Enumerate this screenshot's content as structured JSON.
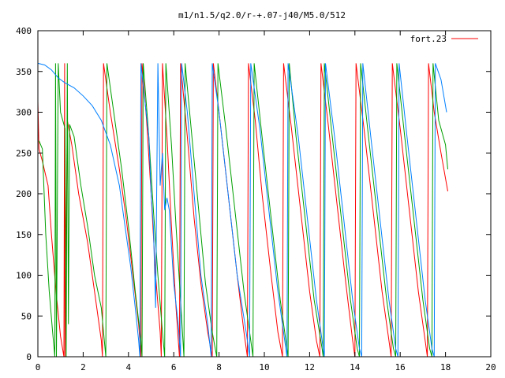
{
  "chart_data": {
    "type": "line",
    "title": "m1/n1.5/q2.0/r-+.07-j40/M5.0/512",
    "xlabel": "",
    "ylabel": "",
    "xlim": [
      0,
      20
    ],
    "ylim": [
      0,
      400
    ],
    "xticks": [
      "0",
      "2",
      "4",
      "6",
      "8",
      "10",
      "12",
      "14",
      "16",
      "18",
      "20"
    ],
    "yticks": [
      "0",
      "50",
      "100",
      "150",
      "200",
      "250",
      "300",
      "350",
      "400"
    ],
    "grid": false,
    "legend_position": "top-right",
    "colors": {
      "red": "#ff0000",
      "green": "#00a000",
      "blue": "#0080ff",
      "purple": "#8000a0"
    },
    "series": [
      {
        "name": "fort.23",
        "color": "#ff0000",
        "points": [
          [
            0,
            313
          ],
          [
            0.05,
            255
          ],
          [
            0.2,
            240
          ],
          [
            0.45,
            210
          ],
          [
            0.6,
            150
          ],
          [
            0.8,
            80
          ],
          [
            1.0,
            25
          ],
          [
            1.15,
            0
          ],
          [
            1.18,
            360
          ],
          [
            1.2,
            0
          ],
          [
            1.3,
            290
          ],
          [
            1.5,
            260
          ],
          [
            1.8,
            200
          ],
          [
            2.2,
            140
          ],
          [
            2.5,
            80
          ],
          [
            2.8,
            20
          ],
          [
            2.85,
            0
          ],
          [
            2.9,
            360
          ],
          [
            3.2,
            300
          ],
          [
            3.6,
            230
          ],
          [
            3.9,
            170
          ],
          [
            4.2,
            100
          ],
          [
            4.45,
            40
          ],
          [
            4.55,
            0
          ],
          [
            4.6,
            360
          ],
          [
            4.8,
            290
          ],
          [
            5.0,
            200
          ],
          [
            5.2,
            100
          ],
          [
            5.4,
            30
          ],
          [
            5.45,
            0
          ],
          [
            5.5,
            360
          ],
          [
            5.7,
            270
          ],
          [
            5.9,
            160
          ],
          [
            6.1,
            60
          ],
          [
            6.25,
            0
          ],
          [
            6.3,
            360
          ],
          [
            6.6,
            270
          ],
          [
            6.9,
            170
          ],
          [
            7.2,
            90
          ],
          [
            7.5,
            30
          ],
          [
            7.7,
            0
          ],
          [
            7.75,
            360
          ],
          [
            8.0,
            300
          ],
          [
            8.4,
            200
          ],
          [
            8.8,
            100
          ],
          [
            9.1,
            30
          ],
          [
            9.25,
            0
          ],
          [
            9.3,
            360
          ],
          [
            9.6,
            290
          ],
          [
            9.9,
            200
          ],
          [
            10.3,
            100
          ],
          [
            10.6,
            30
          ],
          [
            10.8,
            0
          ],
          [
            10.85,
            360
          ],
          [
            11.2,
            280
          ],
          [
            11.6,
            180
          ],
          [
            12.0,
            80
          ],
          [
            12.3,
            20
          ],
          [
            12.45,
            0
          ],
          [
            12.5,
            360
          ],
          [
            12.8,
            290
          ],
          [
            13.2,
            190
          ],
          [
            13.6,
            90
          ],
          [
            13.9,
            20
          ],
          [
            14.0,
            0
          ],
          [
            14.05,
            360
          ],
          [
            14.4,
            280
          ],
          [
            14.8,
            180
          ],
          [
            15.2,
            80
          ],
          [
            15.5,
            20
          ],
          [
            15.6,
            0
          ],
          [
            15.65,
            360
          ],
          [
            16.0,
            280
          ],
          [
            16.4,
            180
          ],
          [
            16.8,
            80
          ],
          [
            17.1,
            20
          ],
          [
            17.2,
            0
          ],
          [
            17.25,
            360
          ],
          [
            17.5,
            300
          ],
          [
            17.8,
            250
          ],
          [
            18.1,
            203
          ]
        ]
      },
      {
        "name": "",
        "color": "#00a000",
        "points": [
          [
            0.05,
            265
          ],
          [
            0.2,
            255
          ],
          [
            0.35,
            150
          ],
          [
            0.5,
            80
          ],
          [
            0.65,
            30
          ],
          [
            0.75,
            0
          ],
          [
            0.78,
            360
          ],
          [
            0.82,
            0
          ],
          [
            0.9,
            360
          ],
          [
            1.0,
            300
          ],
          [
            1.2,
            280
          ],
          [
            1.25,
            0
          ],
          [
            1.3,
            360
          ],
          [
            1.35,
            40
          ],
          [
            1.4,
            285
          ],
          [
            1.6,
            270
          ],
          [
            1.9,
            210
          ],
          [
            2.2,
            160
          ],
          [
            2.5,
            100
          ],
          [
            2.8,
            60
          ],
          [
            3.0,
            0
          ],
          [
            3.05,
            360
          ],
          [
            3.3,
            310
          ],
          [
            3.7,
            230
          ],
          [
            4.0,
            160
          ],
          [
            4.3,
            80
          ],
          [
            4.55,
            20
          ],
          [
            4.6,
            0
          ],
          [
            4.65,
            360
          ],
          [
            4.9,
            270
          ],
          [
            5.1,
            180
          ],
          [
            5.3,
            100
          ],
          [
            5.5,
            30
          ],
          [
            5.6,
            0
          ],
          [
            5.65,
            360
          ],
          [
            5.9,
            260
          ],
          [
            6.1,
            160
          ],
          [
            6.3,
            70
          ],
          [
            6.45,
            0
          ],
          [
            6.5,
            360
          ],
          [
            6.8,
            270
          ],
          [
            7.1,
            180
          ],
          [
            7.4,
            90
          ],
          [
            7.7,
            30
          ],
          [
            7.9,
            0
          ],
          [
            7.95,
            360
          ],
          [
            8.3,
            280
          ],
          [
            8.7,
            180
          ],
          [
            9.1,
            80
          ],
          [
            9.4,
            20
          ],
          [
            9.5,
            0
          ],
          [
            9.55,
            360
          ],
          [
            9.9,
            270
          ],
          [
            10.3,
            170
          ],
          [
            10.7,
            70
          ],
          [
            11.0,
            10
          ],
          [
            11.05,
            0
          ],
          [
            11.1,
            360
          ],
          [
            11.4,
            270
          ],
          [
            11.8,
            170
          ],
          [
            12.2,
            70
          ],
          [
            12.55,
            10
          ],
          [
            12.6,
            0
          ],
          [
            12.65,
            360
          ],
          [
            13.0,
            270
          ],
          [
            13.4,
            170
          ],
          [
            13.8,
            70
          ],
          [
            14.1,
            10
          ],
          [
            14.2,
            0
          ],
          [
            14.25,
            360
          ],
          [
            14.6,
            270
          ],
          [
            15.0,
            170
          ],
          [
            15.4,
            70
          ],
          [
            15.7,
            10
          ],
          [
            15.8,
            0
          ],
          [
            15.85,
            360
          ],
          [
            16.2,
            270
          ],
          [
            16.6,
            170
          ],
          [
            17.0,
            70
          ],
          [
            17.3,
            10
          ],
          [
            17.4,
            0
          ],
          [
            17.45,
            360
          ],
          [
            17.7,
            290
          ],
          [
            18.0,
            260
          ],
          [
            18.1,
            230
          ]
        ]
      },
      {
        "name": "",
        "color": "#0080ff",
        "points": [
          [
            0,
            360
          ],
          [
            0.3,
            358
          ],
          [
            0.6,
            352
          ],
          [
            0.9,
            342
          ],
          [
            1.2,
            336
          ],
          [
            1.6,
            330
          ],
          [
            2.0,
            320
          ],
          [
            2.4,
            308
          ],
          [
            2.8,
            290
          ],
          [
            3.2,
            260
          ],
          [
            3.6,
            210
          ],
          [
            3.9,
            150
          ],
          [
            4.1,
            110
          ],
          [
            4.3,
            60
          ],
          [
            4.45,
            20
          ],
          [
            4.5,
            0
          ],
          [
            4.55,
            360
          ],
          [
            4.7,
            320
          ],
          [
            4.9,
            270
          ],
          [
            5.0,
            200
          ],
          [
            5.1,
            160
          ],
          [
            5.2,
            60
          ],
          [
            5.3,
            360
          ],
          [
            5.4,
            210
          ],
          [
            5.5,
            250
          ],
          [
            5.6,
            180
          ],
          [
            5.7,
            195
          ],
          [
            5.8,
            180
          ],
          [
            6.0,
            90
          ],
          [
            6.2,
            40
          ],
          [
            6.3,
            0
          ],
          [
            6.35,
            360
          ],
          [
            6.6,
            300
          ],
          [
            6.9,
            200
          ],
          [
            7.2,
            100
          ],
          [
            7.5,
            40
          ],
          [
            7.65,
            0
          ],
          [
            7.7,
            360
          ],
          [
            8.0,
            300
          ],
          [
            8.4,
            200
          ],
          [
            8.8,
            100
          ],
          [
            9.2,
            30
          ],
          [
            9.35,
            0
          ],
          [
            9.4,
            360
          ],
          [
            9.8,
            280
          ],
          [
            10.2,
            180
          ],
          [
            10.6,
            80
          ],
          [
            10.9,
            20
          ],
          [
            11.0,
            0
          ],
          [
            11.05,
            360
          ],
          [
            11.5,
            270
          ],
          [
            11.9,
            170
          ],
          [
            12.3,
            70
          ],
          [
            12.6,
            10
          ],
          [
            12.65,
            0
          ],
          [
            12.7,
            360
          ],
          [
            13.1,
            270
          ],
          [
            13.5,
            170
          ],
          [
            13.9,
            70
          ],
          [
            14.2,
            10
          ],
          [
            14.3,
            0
          ],
          [
            14.35,
            360
          ],
          [
            14.7,
            270
          ],
          [
            15.1,
            170
          ],
          [
            15.5,
            70
          ],
          [
            15.8,
            10
          ],
          [
            15.9,
            0
          ],
          [
            15.95,
            360
          ],
          [
            16.3,
            270
          ],
          [
            16.7,
            170
          ],
          [
            17.1,
            70
          ],
          [
            17.4,
            10
          ],
          [
            17.5,
            0
          ],
          [
            17.55,
            360
          ],
          [
            17.8,
            340
          ],
          [
            18.05,
            300
          ]
        ]
      }
    ]
  }
}
